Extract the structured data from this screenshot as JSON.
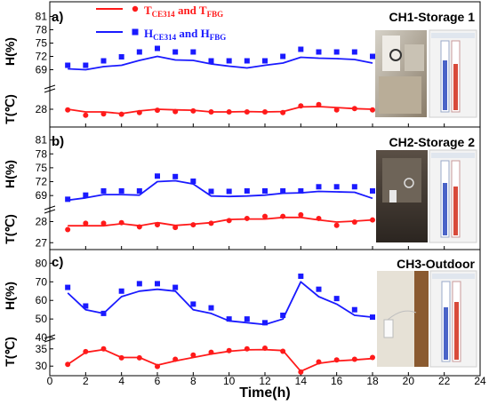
{
  "legend": {
    "t_label": "T",
    "t_sub1": "CE314",
    "t_mid": " and T",
    "t_sub2": "FBG",
    "h_label": "H",
    "h_sub1": "CE314",
    "h_mid": " and H",
    "h_sub2": "FBG"
  },
  "colors": {
    "temperature": "#ff1a1a",
    "humidity": "#1a1aff",
    "axis": "#000000"
  },
  "chart_data": [
    {
      "type": "line",
      "panel_label": "a)",
      "title": "CH1-Storage 1",
      "ylabel_h": "H(%)",
      "ylabel_t": "T(℃)",
      "h_ylim": [
        67.5,
        81.5
      ],
      "h_ticks": [
        69,
        72,
        75,
        78,
        81
      ],
      "t_ylim": [
        27.6,
        28.4
      ],
      "t_ticks": [
        28
      ],
      "x": [
        1,
        2,
        3,
        4,
        5,
        6,
        7,
        8,
        9,
        10,
        11,
        12,
        13,
        14,
        15,
        16,
        17,
        18
      ],
      "series": [
        {
          "name": "H_CE314",
          "kind": "line",
          "axis": "h",
          "values": [
            69.2,
            69.0,
            69.7,
            70.0,
            71.1,
            72.0,
            71.2,
            71.1,
            70.3,
            69.8,
            69.4,
            70.0,
            70.5,
            71.8,
            71.6,
            71.5,
            71.3,
            70.5
          ]
        },
        {
          "name": "H_FBG",
          "kind": "marker",
          "axis": "h",
          "values": [
            70.0,
            70.0,
            71.0,
            71.9,
            73.0,
            73.8,
            73.0,
            73.0,
            71.0,
            71.0,
            71.0,
            71.0,
            72.0,
            73.6,
            73.0,
            73.0,
            73.0,
            72.0
          ]
        },
        {
          "name": "T_CE314",
          "kind": "line",
          "axis": "t",
          "values": [
            28.0,
            27.92,
            27.92,
            27.87,
            27.95,
            28.0,
            27.98,
            27.97,
            27.92,
            27.92,
            27.93,
            27.92,
            27.93,
            28.07,
            28.08,
            28.05,
            28.02,
            28.0
          ]
        },
        {
          "name": "T_FBG",
          "kind": "marker",
          "axis": "t",
          "values": [
            27.98,
            27.82,
            27.86,
            27.85,
            27.9,
            27.97,
            27.93,
            27.95,
            27.92,
            27.92,
            27.92,
            27.92,
            27.9,
            28.1,
            28.14,
            27.98,
            28.02,
            27.98
          ]
        }
      ]
    },
    {
      "type": "line",
      "panel_label": "b)",
      "title": "CH2-Storage 2",
      "ylabel_h": "H(%)",
      "ylabel_t": "T(℃)",
      "h_ylim": [
        67.5,
        81.5
      ],
      "h_ticks": [
        69,
        72,
        75,
        78,
        81
      ],
      "t_ylim": [
        26.8,
        28.4
      ],
      "t_ticks": [
        27,
        28
      ],
      "x": [
        1,
        2,
        3,
        4,
        5,
        6,
        7,
        8,
        9,
        10,
        11,
        12,
        13,
        14,
        15,
        16,
        17,
        18
      ],
      "series": [
        {
          "name": "H_CE314",
          "kind": "line",
          "axis": "h",
          "values": [
            68.0,
            68.5,
            69.2,
            69.2,
            69.1,
            72.0,
            72.2,
            71.5,
            68.9,
            68.8,
            68.9,
            69.1,
            69.5,
            69.6,
            69.9,
            69.8,
            69.7,
            68.4
          ]
        },
        {
          "name": "H_FBG",
          "kind": "marker",
          "axis": "h",
          "values": [
            68.2,
            69.1,
            70.0,
            70.0,
            70.0,
            73.2,
            73.1,
            72.1,
            69.9,
            69.9,
            70.0,
            70.0,
            70.0,
            70.0,
            70.9,
            70.9,
            70.9,
            70.0
          ]
        },
        {
          "name": "T_CE314",
          "kind": "line",
          "axis": "t",
          "values": [
            27.8,
            27.8,
            27.8,
            27.9,
            27.8,
            27.95,
            27.82,
            27.88,
            27.95,
            28.1,
            28.12,
            28.12,
            28.2,
            28.2,
            28.08,
            27.98,
            28.02,
            28.08
          ]
        },
        {
          "name": "T_FBG",
          "kind": "marker",
          "axis": "t",
          "values": [
            27.62,
            27.92,
            27.92,
            27.95,
            27.75,
            27.85,
            27.72,
            27.85,
            27.92,
            28.05,
            28.15,
            28.25,
            28.25,
            28.32,
            28.15,
            27.82,
            27.98,
            28.08
          ]
        }
      ]
    },
    {
      "type": "line",
      "panel_label": "c)",
      "title": "CH3-Outdoor",
      "ylabel_h": "H(%)",
      "ylabel_t": "T(℃)",
      "h_ylim": [
        41,
        84
      ],
      "h_ticks": [
        40,
        50,
        60,
        70,
        80
      ],
      "t_ylim": [
        28,
        37
      ],
      "t_ticks": [
        30,
        35
      ],
      "xlabel": "Time(h)",
      "xlim": [
        0,
        24
      ],
      "xticks": [
        0,
        2,
        4,
        6,
        8,
        10,
        12,
        14,
        16,
        18,
        20,
        22,
        24
      ],
      "x": [
        1,
        2,
        3,
        4,
        5,
        6,
        7,
        8,
        9,
        10,
        11,
        12,
        13,
        14,
        15,
        16,
        17,
        18
      ],
      "series": [
        {
          "name": "H_CE314",
          "kind": "line",
          "axis": "h",
          "values": [
            64,
            55,
            53,
            62,
            65,
            66,
            65,
            55,
            53,
            49,
            48,
            47,
            50,
            70,
            62,
            58,
            52,
            51
          ]
        },
        {
          "name": "H_FBG",
          "kind": "marker",
          "axis": "h",
          "values": [
            67,
            57,
            53,
            65,
            69,
            69,
            67,
            58,
            56,
            50,
            50,
            48,
            52,
            73,
            66,
            61,
            55,
            51
          ]
        },
        {
          "name": "T_CE314",
          "kind": "line",
          "axis": "t",
          "values": [
            30.5,
            34.0,
            34.8,
            32.5,
            32.5,
            30.3,
            31.5,
            32.5,
            33.5,
            34.3,
            34.7,
            34.8,
            34.5,
            28.5,
            30.8,
            31.5,
            31.8,
            32.2
          ]
        },
        {
          "name": "T_FBG",
          "kind": "marker",
          "axis": "t",
          "values": [
            30.5,
            34.2,
            35.0,
            32.4,
            32.4,
            29.9,
            32.0,
            33.2,
            34.0,
            34.5,
            35.0,
            35.2,
            34.3,
            28.3,
            31.2,
            31.8,
            32.0,
            32.5
          ]
        }
      ]
    }
  ]
}
